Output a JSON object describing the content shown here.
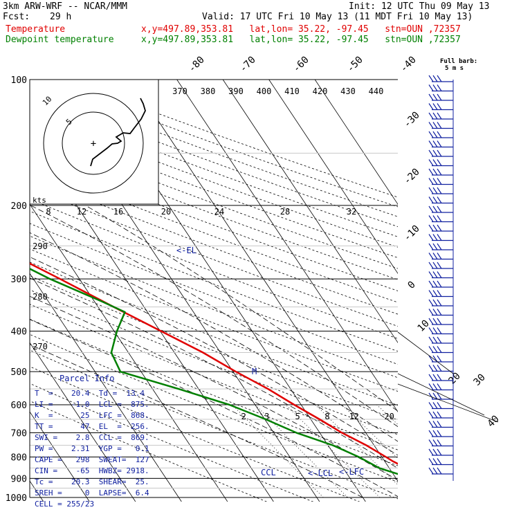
{
  "header": {
    "model": "3km ARW-WRF -- NCAR/MMM",
    "init": "Init: 12 UTC Thu 09 May 13",
    "fcst_label": "Fcst:",
    "fcst_value": "29 h",
    "valid": "Valid: 17 UTC Fri 10 May 13 (11 MDT Fri 10 May 13)",
    "temp_label": "Temperature",
    "temp_info": "x,y=497.89,353.81   lat,lon= 35.22, -97.45   stn=OUN ,72357",
    "dew_label": "Dewpoint temperature",
    "dew_info": "x,y=497.89,353.81   lat,lon= 35.22, -97.45   stn=OUN ,72357"
  },
  "barb_legend": {
    "line1": "Full barb:",
    "line2": "5 m s"
  },
  "colors": {
    "temperature": "#e00000",
    "dewpoint": "#008000",
    "parcel": "#1020a0",
    "dry_adiabat": "#000000"
  },
  "chart_data": {
    "type": "line",
    "subtype": "skew-T log-p",
    "yscale": "log",
    "ylim": [
      1000,
      100
    ],
    "pressure_labels": [
      "100",
      "200",
      "300",
      "400",
      "500",
      "600",
      "700",
      "800",
      "900",
      "1000"
    ],
    "isotherm_labels": [
      "-80",
      "-70",
      "-60",
      "-50",
      "-40",
      "-30",
      "-20",
      "-10",
      "0",
      "10",
      "20",
      "30",
      "40"
    ],
    "theta_labels": [
      "370",
      "380",
      "390",
      "400",
      "410",
      "420",
      "430",
      "440"
    ],
    "theta_side_labels": [
      "290",
      "280",
      "270"
    ],
    "mixing_ratio_labels": [
      "2",
      "3",
      "5",
      "8",
      "12",
      "20"
    ],
    "hodo_label": "kts",
    "hodo_speed_labels": [
      "8",
      "12",
      "16",
      "20",
      "24",
      "28",
      "32"
    ],
    "hodo_ring_labels": [
      "5",
      "10"
    ],
    "level_labels": {
      "el": "<-EL",
      "m": "M",
      "ccl": "CCL",
      "lcl": "<-LCL",
      "lfc": "<-LFC"
    },
    "series": [
      {
        "name": "Temperature",
        "points": [
          [
            973,
            22
          ],
          [
            950,
            20
          ],
          [
            930,
            17.6
          ],
          [
            900,
            15.2
          ],
          [
            850,
            13.7
          ],
          [
            820,
            11.8
          ],
          [
            800,
            10.9
          ],
          [
            750,
            8.3
          ],
          [
            700,
            4.8
          ],
          [
            650,
            1.9
          ],
          [
            600,
            -1.5
          ],
          [
            550,
            -4.9
          ],
          [
            500,
            -9.4
          ],
          [
            450,
            -13.8
          ],
          [
            400,
            -19.8
          ],
          [
            350,
            -26.6
          ],
          [
            300,
            -34.2
          ],
          [
            270,
            -39.6
          ],
          [
            250,
            -46
          ],
          [
            230,
            -48
          ],
          [
            200,
            -50
          ],
          [
            160,
            -52.8
          ],
          [
            130,
            -55.8
          ],
          [
            110,
            -57.7
          ],
          [
            100,
            -59.2
          ]
        ]
      },
      {
        "name": "Dewpoint temperature",
        "points": [
          [
            970,
            12.1
          ],
          [
            950,
            13.4
          ],
          [
            900,
            13.4
          ],
          [
            850,
            7.8
          ],
          [
            800,
            5
          ],
          [
            750,
            1
          ],
          [
            700,
            -5.1
          ],
          [
            650,
            -9.8
          ],
          [
            600,
            -15.6
          ],
          [
            550,
            -24.3
          ],
          [
            500,
            -34.5
          ],
          [
            450,
            -33.7
          ],
          [
            400,
            -29.4
          ],
          [
            360,
            -24.9
          ],
          [
            340,
            -28.3
          ],
          [
            300,
            -36.4
          ],
          [
            250,
            -45.9
          ],
          [
            220,
            -53.9
          ],
          [
            200,
            -55.3
          ],
          [
            180,
            -58.6
          ],
          [
            150,
            -60.8
          ],
          [
            120,
            -64.3
          ],
          [
            100,
            -65.5
          ]
        ]
      }
    ]
  },
  "parcel": {
    "title": "Parcel Info",
    "rows": [
      "T  =    20.4  Td =  13.4",
      "LI =    -1.0  LCL =  875.",
      "K  =      25  LFC =  868.",
      "TT =      47  EL  =  256.",
      "SWI =    2.8  CCL =  869.",
      "PW =    2.31  YGP =   0.1",
      "CAPE =   298  SWEAT=  127",
      "CIN =    -65  HWBZ= 2918.",
      "Tc =    20.3  SHEAR=  25.",
      "SREH =     0  LAPSE=  6.4",
      "CELL = 255/23"
    ]
  }
}
